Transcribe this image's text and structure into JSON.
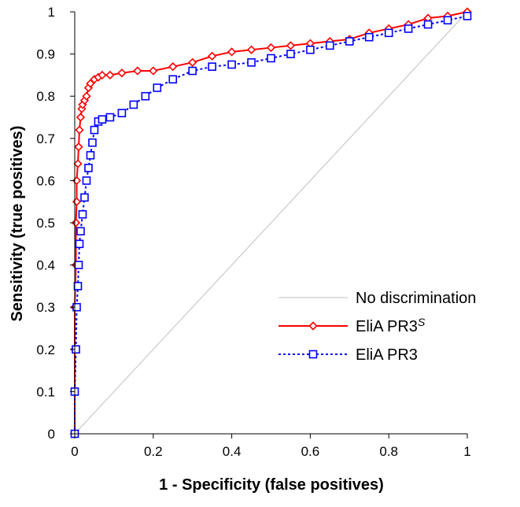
{
  "chart_data": {
    "type": "line",
    "title": "",
    "xlabel": "1 - Specificity (false positives)",
    "ylabel": "Sensitivity (true positives)",
    "xlim": [
      0,
      1
    ],
    "ylim": [
      0,
      1
    ],
    "x_ticks": [
      "0",
      "0.2",
      "0.4",
      "0.6",
      "0.8",
      "1"
    ],
    "y_ticks": [
      "0",
      "0.1",
      "0.2",
      "0.3",
      "0.4",
      "0.5",
      "0.6",
      "0.7",
      "0.8",
      "0.9",
      "1"
    ],
    "grid": false,
    "legend": {
      "position": "bottom-right",
      "entries": [
        {
          "name": "No discrimination",
          "color": "#c0c0c0",
          "marker": "none",
          "dash": "solid"
        },
        {
          "name": "EliA PR3",
          "superscript": "S",
          "color": "#ff0000",
          "marker": "diamond",
          "dash": "solid"
        },
        {
          "name": "EliA PR3",
          "superscript": "",
          "color": "#0000ff",
          "marker": "square",
          "dash": "dotted"
        }
      ]
    },
    "series": [
      {
        "name": "No discrimination",
        "color": "#c0c0c0",
        "marker": "none",
        "dash": "solid",
        "x": [
          0,
          1
        ],
        "y": [
          0,
          1
        ]
      },
      {
        "name": "EliA PR3S",
        "color": "#ff0000",
        "marker": "diamond",
        "dash": "solid",
        "x": [
          0,
          0,
          0,
          0.003,
          0.003,
          0.005,
          0.005,
          0.008,
          0.01,
          0.012,
          0.015,
          0.018,
          0.02,
          0.025,
          0.03,
          0.035,
          0.04,
          0.05,
          0.06,
          0.07,
          0.09,
          0.12,
          0.16,
          0.2,
          0.25,
          0.3,
          0.35,
          0.4,
          0.45,
          0.5,
          0.55,
          0.6,
          0.65,
          0.7,
          0.75,
          0.8,
          0.85,
          0.9,
          0.95,
          1
        ],
        "y": [
          0,
          0.2,
          0.3,
          0.4,
          0.5,
          0.55,
          0.6,
          0.64,
          0.68,
          0.72,
          0.75,
          0.77,
          0.78,
          0.79,
          0.8,
          0.82,
          0.83,
          0.84,
          0.845,
          0.85,
          0.85,
          0.855,
          0.86,
          0.86,
          0.87,
          0.88,
          0.895,
          0.905,
          0.91,
          0.915,
          0.92,
          0.925,
          0.93,
          0.935,
          0.95,
          0.96,
          0.97,
          0.985,
          0.99,
          1
        ]
      },
      {
        "name": "EliA PR3",
        "color": "#0000ff",
        "marker": "square",
        "dash": "dotted",
        "x": [
          0,
          0,
          0.003,
          0.005,
          0.008,
          0.01,
          0.012,
          0.015,
          0.02,
          0.025,
          0.03,
          0.035,
          0.04,
          0.045,
          0.05,
          0.06,
          0.07,
          0.09,
          0.12,
          0.15,
          0.18,
          0.21,
          0.25,
          0.3,
          0.35,
          0.4,
          0.45,
          0.5,
          0.55,
          0.6,
          0.65,
          0.7,
          0.75,
          0.8,
          0.85,
          0.9,
          0.95,
          1
        ],
        "y": [
          0,
          0.1,
          0.2,
          0.3,
          0.35,
          0.4,
          0.45,
          0.48,
          0.52,
          0.56,
          0.6,
          0.63,
          0.66,
          0.69,
          0.72,
          0.74,
          0.745,
          0.75,
          0.76,
          0.78,
          0.8,
          0.82,
          0.84,
          0.86,
          0.87,
          0.875,
          0.88,
          0.89,
          0.9,
          0.91,
          0.92,
          0.93,
          0.94,
          0.95,
          0.96,
          0.97,
          0.98,
          0.99
        ]
      }
    ]
  }
}
